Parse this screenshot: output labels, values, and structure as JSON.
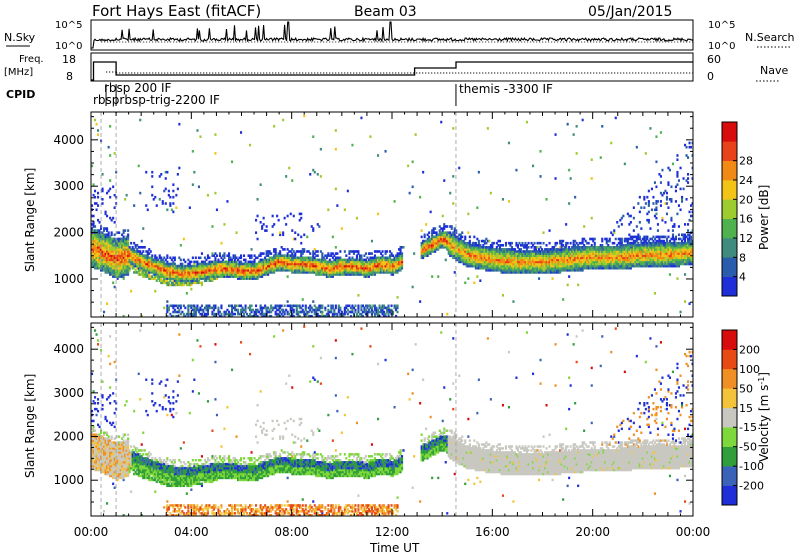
{
  "header": {
    "title": "Fort Hays East (fitACF)",
    "beam": "Beam 03",
    "date": "05/Jan/2015"
  },
  "strip_labels": {
    "nsky": "N.Sky",
    "nsearch": "N.Search",
    "freq_line1": "Freq.",
    "freq_line2": "[MHz]",
    "nave": "Nave",
    "cpid": "CPID"
  },
  "strip_ticks": {
    "noise_left": [
      "10^5",
      "10^0"
    ],
    "noise_right": [
      "10^5",
      "10^0"
    ],
    "freq_left": [
      "18",
      "8"
    ],
    "nave_right": [
      "60",
      "0"
    ]
  },
  "cpid_labels": [
    {
      "text": "rbsp 200 IF",
      "time_h": 1.0
    },
    {
      "text": "rbsprbsp-trig-2200 IF",
      "time_h": 0.6
    },
    {
      "text": "themis -3300 IF",
      "time_h": 14.55
    }
  ],
  "axes": {
    "xlabel": "Time UT",
    "x_ticks": [
      "00:00",
      "04:00",
      "08:00",
      "12:00",
      "16:00",
      "20:00",
      "00:00"
    ],
    "ylabel": "Slant Range [km]",
    "y_ticks": [
      "1000",
      "2000",
      "3000",
      "4000"
    ]
  },
  "colorbars": {
    "power": {
      "label": "Power [dB]",
      "ticks": [
        "4",
        "8",
        "12",
        "16",
        "20",
        "24",
        "28"
      ],
      "colors": [
        "#1e2fd8",
        "#2a5cae",
        "#3f8b7d",
        "#4fb24e",
        "#9ecb2e",
        "#f2c418",
        "#f08a14",
        "#e8421a",
        "#d80c0c"
      ]
    },
    "velocity": {
      "label": "Velocity [m s^-1]",
      "ticks": [
        "200",
        "100",
        "50",
        "15",
        "-15",
        "-50",
        "-100",
        "-200"
      ],
      "colors": [
        "#1e2fd8",
        "#3a62b8",
        "#2f9e3b",
        "#7fd83b",
        "#c8c8c0",
        "#f3c43a",
        "#f09024",
        "#e84a14",
        "#d80c0c"
      ]
    }
  },
  "chart_data": {
    "type": "heatmap",
    "x_range_hours": [
      0,
      24
    ],
    "y_range_km": [
      180,
      4600
    ],
    "freq_mhz": [
      {
        "t0": 0.0,
        "t1": 0.1,
        "f": 8
      },
      {
        "t0": 0.1,
        "t1": 1.0,
        "f": 17
      },
      {
        "t0": 1.0,
        "t1": 12.9,
        "f": 10.5
      },
      {
        "t0": 12.9,
        "t1": 14.55,
        "f": 14
      },
      {
        "t0": 14.55,
        "t1": 24.0,
        "f": 17
      }
    ],
    "ionospheric_band": [
      [
        0.0,
        1650
      ],
      [
        0.5,
        1550
      ],
      [
        1.0,
        1400
      ],
      [
        1.5,
        1500
      ],
      [
        2.0,
        1350
      ],
      [
        2.5,
        1250
      ],
      [
        3.0,
        1150
      ],
      [
        3.5,
        1100
      ],
      [
        4.0,
        1100
      ],
      [
        4.5,
        1150
      ],
      [
        5.0,
        1200
      ],
      [
        5.5,
        1200
      ],
      [
        6.0,
        1150
      ],
      [
        6.5,
        1150
      ],
      [
        7.0,
        1250
      ],
      [
        7.5,
        1350
      ],
      [
        8.0,
        1300
      ],
      [
        8.5,
        1300
      ],
      [
        9.0,
        1250
      ],
      [
        9.5,
        1200
      ],
      [
        10.0,
        1250
      ],
      [
        10.5,
        1250
      ],
      [
        11.0,
        1200
      ],
      [
        11.5,
        1300
      ],
      [
        12.0,
        1250
      ],
      [
        14.0,
        1850
      ],
      [
        14.5,
        1650
      ],
      [
        15.0,
        1500
      ],
      [
        16.0,
        1400
      ],
      [
        17.0,
        1350
      ],
      [
        18.0,
        1350
      ],
      [
        19.0,
        1400
      ],
      [
        20.0,
        1450
      ],
      [
        21.0,
        1450
      ],
      [
        22.0,
        1500
      ],
      [
        23.0,
        1500
      ],
      [
        24.0,
        1550
      ]
    ]
  }
}
